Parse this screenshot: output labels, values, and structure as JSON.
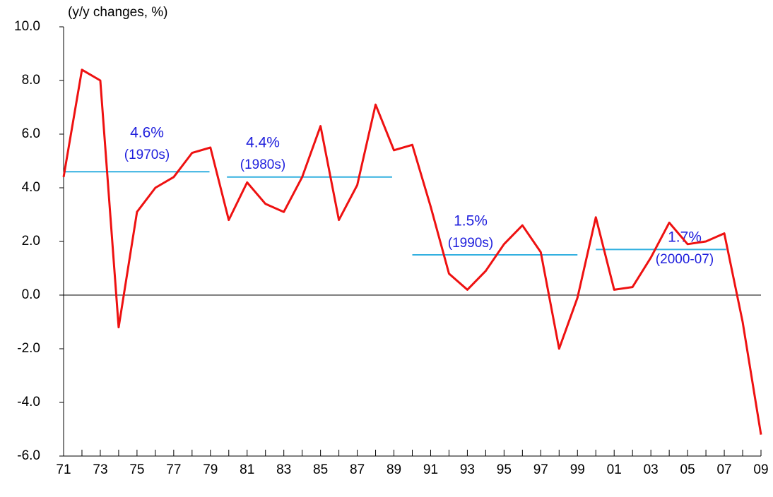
{
  "chart_data": {
    "type": "line",
    "y_axis_label": "(y/y changes, %)",
    "categories": [
      "71",
      null,
      "73",
      null,
      "75",
      null,
      "77",
      null,
      "79",
      null,
      "81",
      null,
      "83",
      null,
      "85",
      null,
      "87",
      null,
      "89",
      null,
      "91",
      null,
      "93",
      null,
      "95",
      null,
      "97",
      null,
      "99",
      null,
      "01",
      null,
      "03",
      null,
      "05",
      null,
      "07",
      null,
      "09"
    ],
    "series": [
      {
        "color": "#ee1111",
        "values": [
          4.4,
          8.4,
          8.0,
          -1.2,
          3.1,
          4.0,
          4.4,
          5.3,
          5.5,
          2.8,
          4.2,
          3.4,
          3.1,
          4.4,
          6.3,
          2.8,
          4.1,
          7.1,
          5.4,
          5.6,
          3.3,
          0.8,
          0.2,
          0.9,
          1.9,
          2.6,
          1.6,
          -2.0,
          -0.1,
          2.9,
          0.2,
          0.3,
          1.4,
          2.7,
          1.9,
          2.0,
          2.3,
          -1.0,
          -5.2
        ]
      }
    ],
    "averages": {
      "color": "#33b0e0",
      "text_color": "#2020dd",
      "items": [
        {
          "text": "(1970s)",
          "value": 4.6,
          "value_label": "4.6%"
        },
        {
          "text": "(1980s)",
          "value": 4.4,
          "value_label": "4.4%"
        },
        {
          "text": "(1990s)",
          "value": 1.5,
          "value_label": "1.5%"
        },
        {
          "text": "(2000-07)",
          "value": 1.7,
          "value_label": "1.7%"
        }
      ]
    },
    "ylim": [
      -6,
      10
    ],
    "yticks": [
      {
        "value": -6,
        "label": "-6.0"
      },
      {
        "value": -4,
        "label": "-4.0"
      },
      {
        "value": -2,
        "label": "-2.0"
      },
      {
        "value": 0,
        "label": "0.0"
      },
      {
        "value": 2,
        "label": "2.0"
      },
      {
        "value": 4,
        "label": "4.0"
      },
      {
        "value": 6,
        "label": "6.0"
      },
      {
        "value": 8,
        "label": "8.0"
      },
      {
        "value": 10,
        "label": "10.0"
      }
    ]
  }
}
